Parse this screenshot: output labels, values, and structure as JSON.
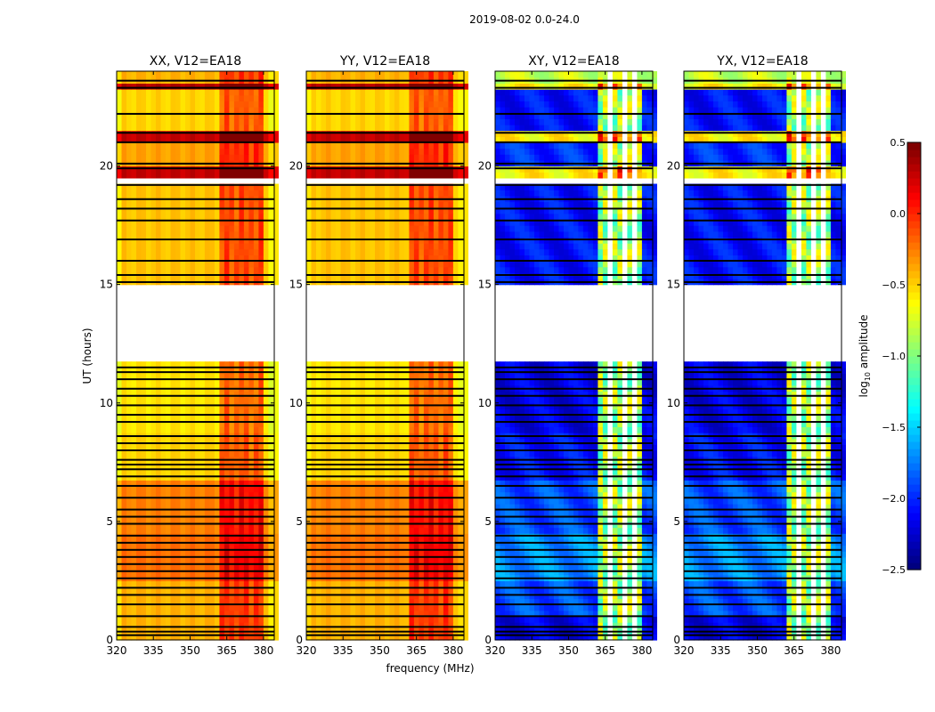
{
  "chart_data": {
    "type": "heatmap",
    "suptitle": "2019-08-02 0.0-24.0",
    "xlabel": "frequency (MHz)",
    "ylabel": "UT (hours)",
    "xlim": [
      320,
      384.4
    ],
    "ylim": [
      0,
      24
    ],
    "xticks": [
      320,
      335,
      350,
      365,
      380
    ],
    "yticks": [
      0,
      5,
      10,
      15,
      20
    ],
    "panels": [
      {
        "title": "XX, V12=EA18",
        "kind": "parallel"
      },
      {
        "title": "YY, V12=EA18",
        "kind": "parallel"
      },
      {
        "title": "XY, V12=EA18",
        "kind": "cross"
      },
      {
        "title": "YX, V12=EA18",
        "kind": "cross"
      }
    ],
    "colorbar": {
      "label_prefix": "log",
      "label_sub": "10",
      "label_suffix": " amplitude",
      "range": [
        -2.5,
        0.5
      ],
      "ticks": [
        "0.5",
        "0.0",
        "−0.5",
        "−1.0",
        "−1.5",
        "−2.0",
        "−2.5"
      ]
    },
    "time_segments": [
      [
        0.0,
        0.9,
        -0.4,
        -2.2
      ],
      [
        0.9,
        2.5,
        -0.4,
        -1.9
      ],
      [
        2.5,
        4.4,
        -0.2,
        -1.7
      ],
      [
        4.4,
        6.8,
        -0.25,
        -1.9
      ],
      [
        6.8,
        8.8,
        -0.5,
        -2.1
      ],
      [
        8.8,
        11.7,
        -0.55,
        -2.2
      ],
      [
        15.0,
        19.3,
        -0.45,
        -2.1
      ],
      [
        19.6,
        19.9,
        0.3,
        -0.6
      ],
      [
        19.9,
        21.0,
        -0.35,
        -2.0
      ],
      [
        21.0,
        21.4,
        0.3,
        -0.6
      ],
      [
        21.4,
        23.3,
        -0.5,
        -2.1
      ],
      [
        23.3,
        23.6,
        0.35,
        -0.6
      ],
      [
        23.6,
        24.0,
        -0.4,
        -0.8
      ]
    ],
    "rfi_band_mhz": [
      363,
      380
    ],
    "rfi_gaps_mhz": [
      367.5,
      372.5,
      377.5
    ],
    "rfi_boost_parallel": 0.35,
    "rfi_level_cross": -0.9,
    "flagged_rows_hours": [
      0.2,
      0.35,
      0.55,
      1.0,
      1.5,
      1.9,
      2.2,
      2.6,
      2.9,
      3.2,
      3.5,
      3.8,
      4.1,
      4.4,
      4.9,
      5.2,
      5.5,
      6.0,
      6.5,
      6.9,
      7.2,
      7.4,
      7.6,
      8.0,
      8.3,
      8.6,
      8.8,
      9.2,
      9.5,
      9.9,
      10.3,
      10.6,
      11.0,
      11.3,
      11.5,
      15.1,
      15.4,
      16.0,
      16.9,
      17.7,
      18.2,
      18.6,
      19.2,
      19.9,
      20.1,
      21.0,
      21.4,
      22.2,
      23.3,
      23.6
    ],
    "blank_ranges_hours": [
      [
        11.7,
        15.0
      ],
      [
        19.3,
        19.6
      ],
      [
        8.7,
        8.85
      ]
    ]
  }
}
